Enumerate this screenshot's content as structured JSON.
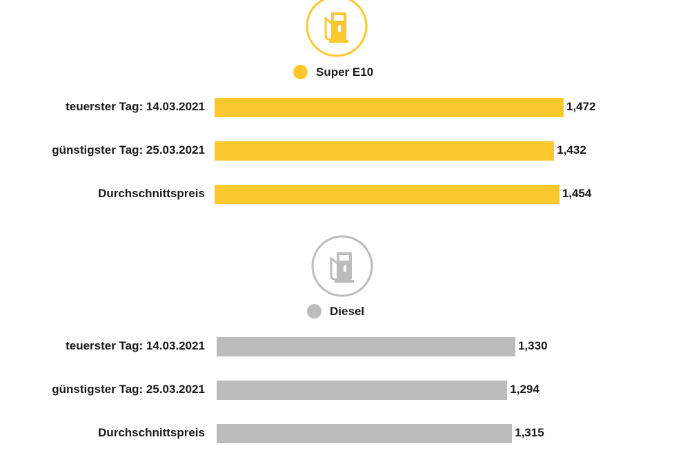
{
  "chart_data": [
    {
      "type": "bar",
      "orientation": "horizontal",
      "series_name": "Super E10",
      "color": "#fbc82e",
      "icon": "fuel-pump-icon",
      "categories": [
        "teuerster Tag: 14.03.2021",
        "günstigster Tag: 25.03.2021",
        "Durchschnittspreis"
      ],
      "values": [
        1.472,
        1.432,
        1.454
      ],
      "value_labels": [
        "1,472",
        "1,432",
        "1,454"
      ],
      "xlim": [
        0,
        1.472
      ]
    },
    {
      "type": "bar",
      "orientation": "horizontal",
      "series_name": "Diesel",
      "color": "#bcbcbc",
      "icon": "fuel-pump-icon",
      "categories": [
        "teuerster Tag: 14.03.2021",
        "günstigster Tag: 25.03.2021",
        "Durchschnittspreis"
      ],
      "values": [
        1.33,
        1.294,
        1.315
      ],
      "value_labels": [
        "1,330",
        "1,294",
        "1,315"
      ],
      "xlim": [
        0,
        1.472
      ]
    }
  ]
}
